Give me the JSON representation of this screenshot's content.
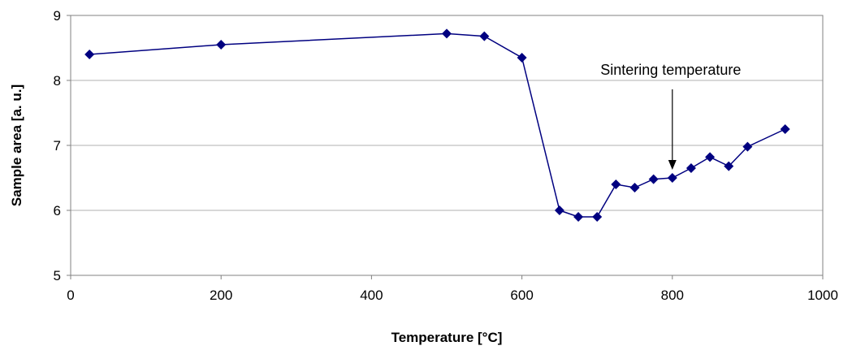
{
  "chart_data": {
    "type": "line",
    "title": "",
    "xlabel": "Temperature [°C]",
    "ylabel": "Sample area [a. u.]",
    "xlim": [
      0,
      1000
    ],
    "ylim": [
      5,
      9
    ],
    "x_ticks": [
      "0",
      "200",
      "400",
      "600",
      "800",
      "1000"
    ],
    "y_ticks": [
      "5",
      "6",
      "7",
      "8",
      "9"
    ],
    "grid": "horizontal",
    "legend": "none",
    "series": [
      {
        "color": "#000080",
        "marker": "diamond",
        "x": [
          25,
          200,
          500,
          550,
          600,
          650,
          675,
          700,
          725,
          750,
          775,
          800,
          825,
          850,
          875,
          900,
          950
        ],
        "y": [
          8.4,
          8.55,
          8.72,
          8.68,
          8.35,
          6.0,
          5.9,
          5.9,
          6.4,
          6.35,
          6.48,
          6.5,
          6.65,
          6.82,
          6.68,
          6.98,
          7.25
        ]
      }
    ],
    "annotations": [
      {
        "text": "Sintering temperature",
        "x": 800,
        "y": 6.6
      }
    ]
  }
}
